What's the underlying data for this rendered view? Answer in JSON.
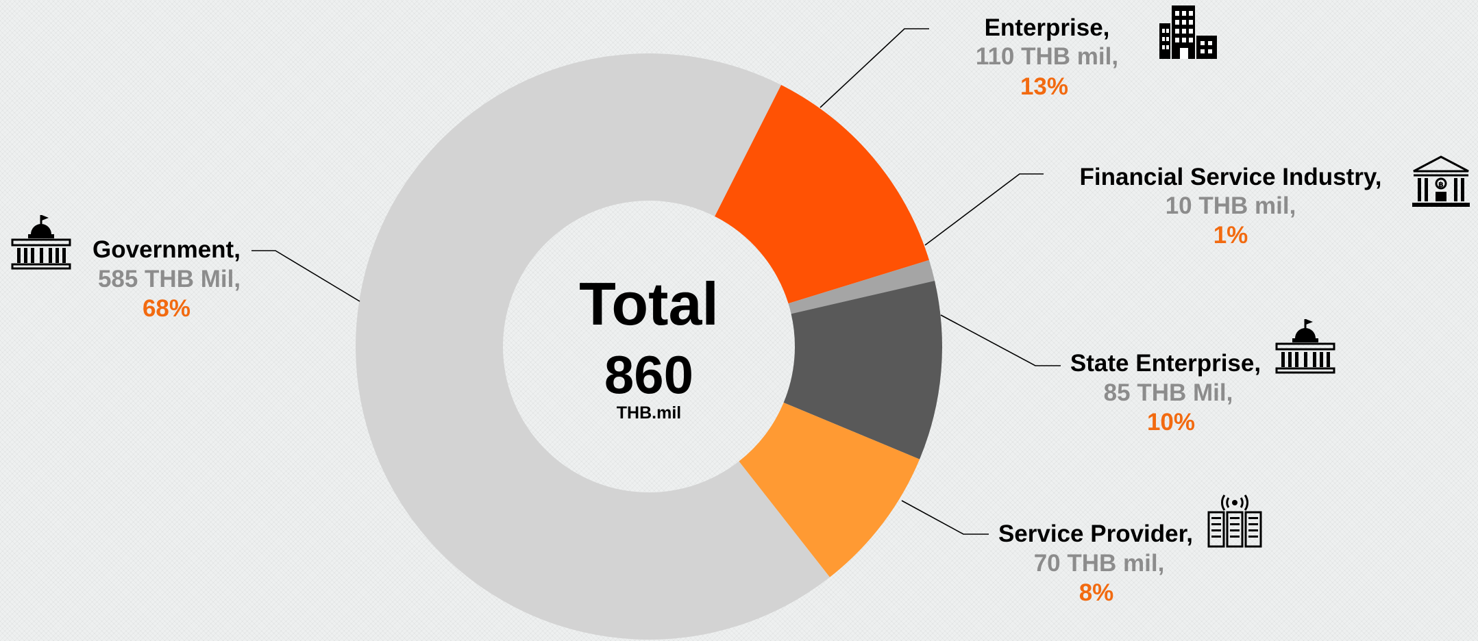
{
  "colors": {
    "value_text": "#8c8c8c",
    "percent_text": "#f26a10"
  },
  "center": {
    "title": "Total",
    "value": "860",
    "unit": "THB.mil"
  },
  "chart_data": {
    "type": "pie",
    "donut": true,
    "total": 860,
    "unit": "THB mil",
    "slices": [
      {
        "label": "Enterprise,",
        "value": 110,
        "percent": 13,
        "value_text": "110 THB mil,",
        "percent_text": "13%",
        "color": "#ff5204",
        "icon": "office-building-icon"
      },
      {
        "label": "Financial Service Industry,",
        "value": 10,
        "percent": 1,
        "value_text": "10 THB mil,",
        "percent_text": "1%",
        "color": "#a5a5a5",
        "icon": "bank-icon"
      },
      {
        "label": "State Enterprise,",
        "value": 85,
        "percent": 10,
        "value_text": "85 THB Mil,",
        "percent_text": "10%",
        "color": "#595959",
        "icon": "capitol-building-icon"
      },
      {
        "label": "Service Provider,",
        "value": 70,
        "percent": 8,
        "value_text": "70 THB mil,",
        "percent_text": "8%",
        "color": "#ff9a33",
        "icon": "server-broadcast-icon"
      },
      {
        "label": "Government,",
        "value": 585,
        "percent": 68,
        "value_text": "585 THB Mil,",
        "percent_text": "68%",
        "color": "#d3d3d3",
        "icon": "capitol-building-icon"
      }
    ]
  }
}
